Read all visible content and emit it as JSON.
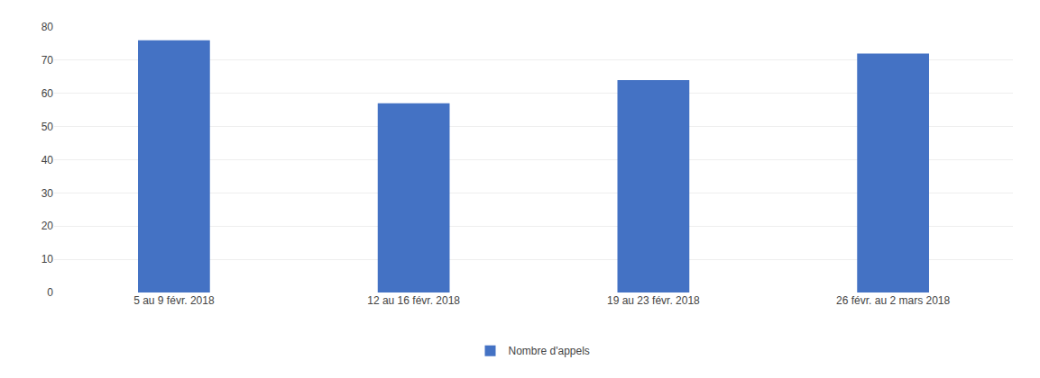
{
  "chart_data": {
    "type": "bar",
    "categories": [
      "5 au 9 févr. 2018",
      "12 au 16 févr. 2018",
      "19 au 23 févr. 2018",
      "26 févr. au 2 mars 2018"
    ],
    "series": [
      {
        "name": "Nombre d'appels",
        "color": "#4472C4",
        "values": [
          76,
          57,
          64,
          72
        ]
      }
    ],
    "ylim": [
      0,
      80
    ],
    "yticks": [
      0,
      10,
      20,
      30,
      40,
      50,
      60,
      70,
      80
    ],
    "grid": true,
    "legend": "bottom"
  }
}
